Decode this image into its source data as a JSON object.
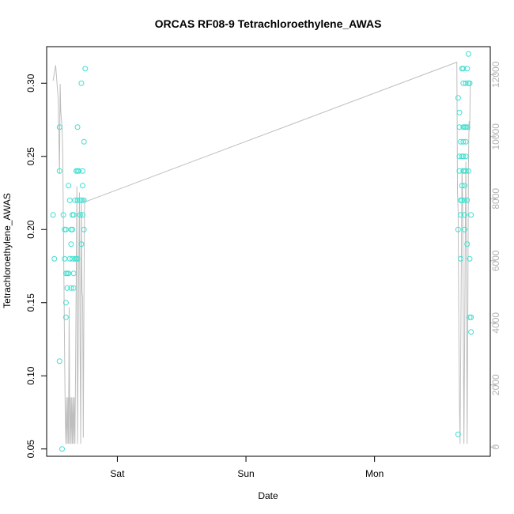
{
  "chart_data": {
    "type": "scatter",
    "title": "ORCAS RF08-9 Tetrachloroethylene_AWAS",
    "xlabel": "Date",
    "ylabel": "Tetrachloroethylene_AWAS",
    "x_unit": "days since Fri 00:00",
    "xlim": [
      0.45,
      3.9
    ],
    "ylim": [
      0.045,
      0.325
    ],
    "y2lim": [
      -300,
      12900
    ],
    "grid": false,
    "legend": "none",
    "x_ticks": [
      {
        "value": 1,
        "label": "Sat"
      },
      {
        "value": 2,
        "label": "Sun"
      },
      {
        "value": 3,
        "label": "Mon"
      }
    ],
    "y_ticks": [
      0.05,
      0.1,
      0.15,
      0.2,
      0.25,
      0.3
    ],
    "y_tick_labels": [
      "0.05",
      "0.10",
      "0.15",
      "0.20",
      "0.25",
      "0.30"
    ],
    "y2_ticks": [
      0,
      2000,
      4000,
      6000,
      8000,
      10000,
      12000
    ],
    "y2_tick_labels": [
      "0",
      "2000",
      "4000",
      "6000",
      "8000",
      "10000",
      "12000"
    ],
    "colors": {
      "points": "#40e0d0",
      "altitude": "#bebebe",
      "axis": "#000000",
      "right_axis": "#b3b3b3"
    },
    "series": [
      {
        "role": "scatter-left-axis",
        "points": [
          [
            0.5,
            0.21
          ],
          [
            0.51,
            0.18
          ],
          [
            0.55,
            0.27
          ],
          [
            0.55,
            0.24
          ],
          [
            0.55,
            0.11
          ],
          [
            0.57,
            0.05
          ],
          [
            0.58,
            0.21
          ],
          [
            0.59,
            0.2
          ],
          [
            0.59,
            0.18
          ],
          [
            0.6,
            0.2
          ],
          [
            0.6,
            0.17
          ],
          [
            0.6,
            0.15
          ],
          [
            0.6,
            0.14
          ],
          [
            0.61,
            0.17
          ],
          [
            0.61,
            0.16
          ],
          [
            0.62,
            0.23
          ],
          [
            0.62,
            0.17
          ],
          [
            0.63,
            0.22
          ],
          [
            0.63,
            0.18
          ],
          [
            0.64,
            0.16
          ],
          [
            0.64,
            0.2
          ],
          [
            0.64,
            0.19
          ],
          [
            0.65,
            0.21
          ],
          [
            0.65,
            0.2
          ],
          [
            0.65,
            0.18
          ],
          [
            0.66,
            0.21
          ],
          [
            0.66,
            0.17
          ],
          [
            0.66,
            0.16
          ],
          [
            0.67,
            0.22
          ],
          [
            0.67,
            0.18
          ],
          [
            0.68,
            0.24
          ],
          [
            0.68,
            0.18
          ],
          [
            0.69,
            0.27
          ],
          [
            0.69,
            0.24
          ],
          [
            0.69,
            0.22
          ],
          [
            0.69,
            0.18
          ],
          [
            0.7,
            0.24
          ],
          [
            0.71,
            0.22
          ],
          [
            0.71,
            0.21
          ],
          [
            0.72,
            0.3
          ],
          [
            0.72,
            0.22
          ],
          [
            0.72,
            0.19
          ],
          [
            0.73,
            0.24
          ],
          [
            0.73,
            0.23
          ],
          [
            0.73,
            0.21
          ],
          [
            0.74,
            0.22
          ],
          [
            0.74,
            0.2
          ],
          [
            0.74,
            0.26
          ],
          [
            0.75,
            0.31
          ],
          [
            3.65,
            0.06
          ],
          [
            3.65,
            0.2
          ],
          [
            3.65,
            0.29
          ],
          [
            3.66,
            0.28
          ],
          [
            3.66,
            0.27
          ],
          [
            3.66,
            0.25
          ],
          [
            3.66,
            0.24
          ],
          [
            3.67,
            0.26
          ],
          [
            3.67,
            0.22
          ],
          [
            3.67,
            0.21
          ],
          [
            3.67,
            0.18
          ],
          [
            3.68,
            0.31
          ],
          [
            3.68,
            0.25
          ],
          [
            3.68,
            0.23
          ],
          [
            3.68,
            0.22
          ],
          [
            3.69,
            0.31
          ],
          [
            3.69,
            0.3
          ],
          [
            3.69,
            0.27
          ],
          [
            3.69,
            0.26
          ],
          [
            3.69,
            0.25
          ],
          [
            3.69,
            0.24
          ],
          [
            3.7,
            0.27
          ],
          [
            3.7,
            0.24
          ],
          [
            3.7,
            0.22
          ],
          [
            3.7,
            0.21
          ],
          [
            3.7,
            0.2
          ],
          [
            3.7,
            0.23
          ],
          [
            3.71,
            0.3
          ],
          [
            3.71,
            0.27
          ],
          [
            3.71,
            0.26
          ],
          [
            3.71,
            0.25
          ],
          [
            3.71,
            0.24
          ],
          [
            3.72,
            0.31
          ],
          [
            3.72,
            0.27
          ],
          [
            3.72,
            0.22
          ],
          [
            3.72,
            0.19
          ],
          [
            3.73,
            0.32
          ],
          [
            3.73,
            0.3
          ],
          [
            3.73,
            0.24
          ],
          [
            3.74,
            0.3
          ],
          [
            3.74,
            0.18
          ],
          [
            3.74,
            0.14
          ],
          [
            3.75,
            0.21
          ],
          [
            3.75,
            0.14
          ],
          [
            3.75,
            0.13
          ]
        ]
      },
      {
        "role": "line-right-axis",
        "points": [
          [
            0.5,
            11800
          ],
          [
            0.52,
            12300
          ],
          [
            0.54,
            11200
          ],
          [
            0.545,
            10000
          ],
          [
            0.55,
            8800
          ],
          [
            0.555,
            11700
          ],
          [
            0.56,
            10800
          ],
          [
            0.57,
            10300
          ],
          [
            0.575,
            9500
          ],
          [
            0.58,
            7300
          ],
          [
            0.585,
            5100
          ],
          [
            0.59,
            2800
          ],
          [
            0.595,
            900
          ],
          [
            0.6,
            100
          ],
          [
            0.605,
            1600
          ],
          [
            0.61,
            100
          ],
          [
            0.615,
            1600
          ],
          [
            0.62,
            100
          ],
          [
            0.625,
            4500
          ],
          [
            0.63,
            100
          ],
          [
            0.635,
            1600
          ],
          [
            0.64,
            100
          ],
          [
            0.645,
            1600
          ],
          [
            0.65,
            100
          ],
          [
            0.655,
            1600
          ],
          [
            0.66,
            100
          ],
          [
            0.665,
            1600
          ],
          [
            0.67,
            100
          ],
          [
            0.675,
            2500
          ],
          [
            0.68,
            5500
          ],
          [
            0.685,
            8400
          ],
          [
            0.69,
            100
          ],
          [
            0.695,
            3000
          ],
          [
            0.7,
            6000
          ],
          [
            0.705,
            8200
          ],
          [
            0.71,
            3200
          ],
          [
            0.715,
            100
          ],
          [
            0.72,
            8000
          ],
          [
            0.725,
            5000
          ],
          [
            0.73,
            4800
          ],
          [
            0.735,
            300
          ],
          [
            0.74,
            4800
          ],
          [
            0.745,
            8000
          ],
          [
            0.75,
            7900
          ],
          [
            3.64,
            12400
          ],
          [
            3.645,
            8200
          ],
          [
            3.65,
            7600
          ],
          [
            3.655,
            4000
          ],
          [
            3.66,
            1500
          ],
          [
            3.665,
            100
          ],
          [
            3.67,
            3000
          ],
          [
            3.675,
            6000
          ],
          [
            3.68,
            9000
          ],
          [
            3.685,
            8000
          ],
          [
            3.69,
            4000
          ],
          [
            3.695,
            100
          ],
          [
            3.7,
            3000
          ],
          [
            3.705,
            6500
          ],
          [
            3.71,
            9200
          ],
          [
            3.715,
            5000
          ],
          [
            3.72,
            100
          ],
          [
            3.725,
            4000
          ],
          [
            3.73,
            9000
          ],
          [
            3.735,
            10500
          ],
          [
            3.74,
            10200
          ],
          [
            3.745,
            11800
          ]
        ]
      }
    ]
  }
}
